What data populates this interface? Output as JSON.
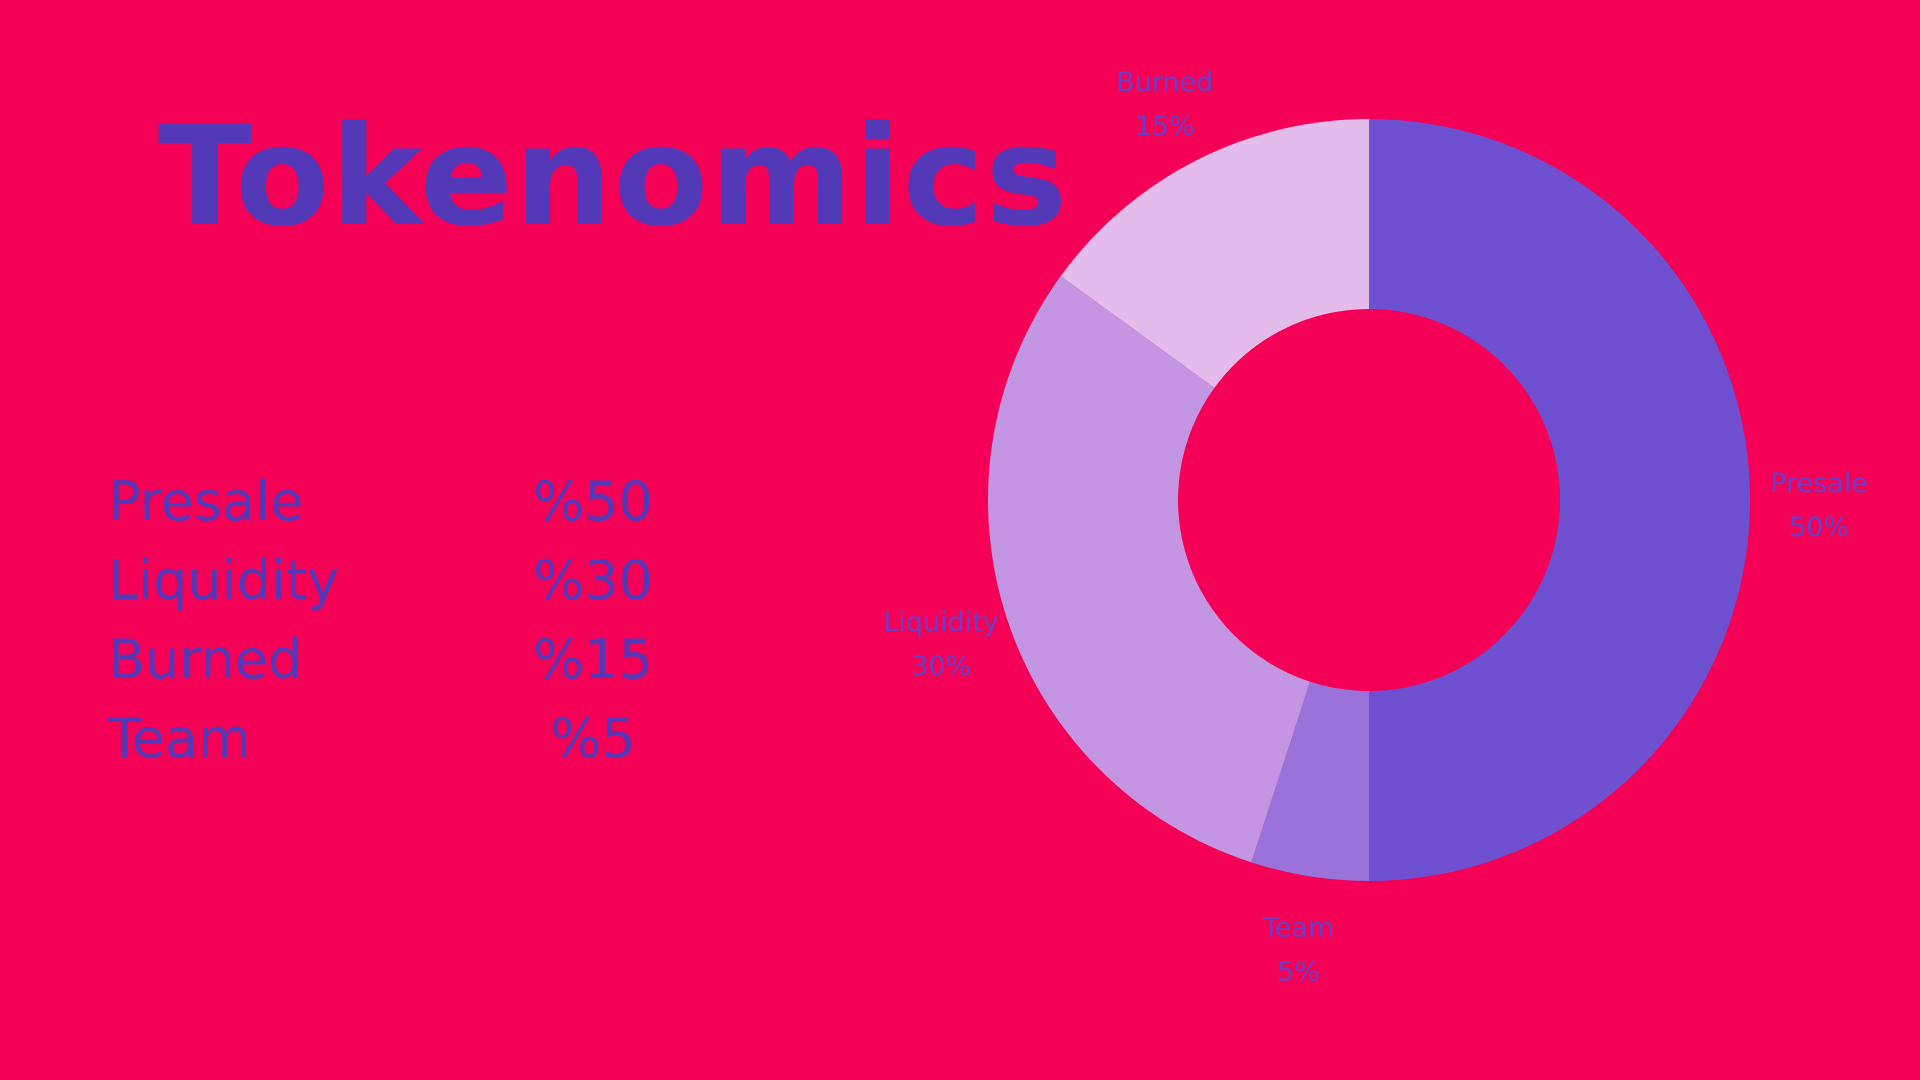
{
  "title": "Tokenomics",
  "legend": [
    {
      "label": "Presale",
      "value": "%50"
    },
    {
      "label": "Liquidity",
      "value": "%30"
    },
    {
      "label": "Burned",
      "value": "%15"
    },
    {
      "label": "Team",
      "value": "%5"
    }
  ],
  "chart_data": {
    "type": "pie",
    "variant": "donut",
    "slices": [
      {
        "name": "Presale",
        "value": 50,
        "label": "50%",
        "color": "#6e50d0"
      },
      {
        "name": "Team",
        "value": 5,
        "label": "5%",
        "color": "#9a72da"
      },
      {
        "name": "Liquidity",
        "value": 30,
        "label": "30%",
        "color": "#c495e3"
      },
      {
        "name": "Burned",
        "value": 15,
        "label": "15%",
        "color": "#e4bcec"
      }
    ]
  },
  "colors": {
    "background": "#f50057",
    "text": "#5339b8",
    "slice_label": "#6a3fc7"
  }
}
